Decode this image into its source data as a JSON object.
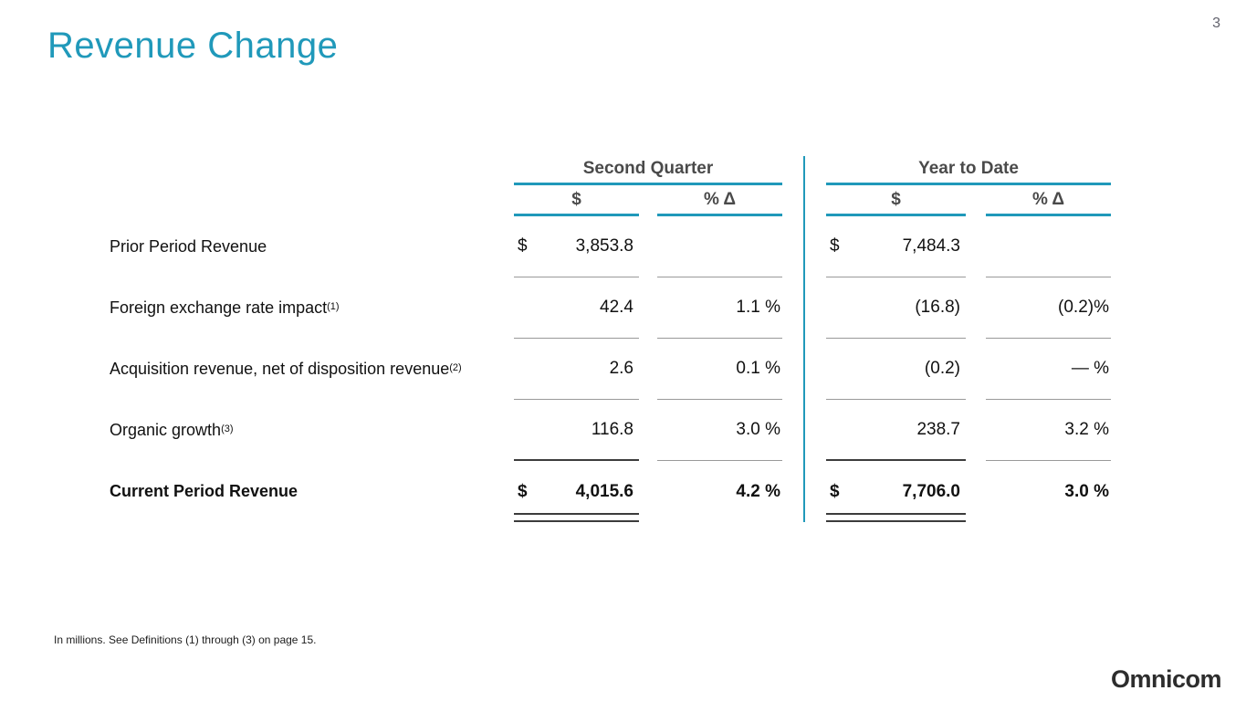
{
  "page": {
    "number": "3",
    "title": "Revenue Change",
    "footnote": "In millions.  See Definitions (1) through (3) on page 15.",
    "logo": "Omnicom"
  },
  "colors": {
    "accent_teal": "#2099ba",
    "header_gray": "#4a4a4a",
    "separator_gray": "#999999",
    "total_line_dark": "#3c3c3c"
  },
  "table": {
    "groups": [
      {
        "label": "Second Quarter"
      },
      {
        "label": "Year to Date"
      }
    ],
    "subheaders": {
      "dollar": "$",
      "pct": "% Δ"
    },
    "rows": [
      {
        "label": "Prior Period Revenue",
        "sup": "",
        "sq_cur": "$",
        "sq_val": "3,853.8",
        "sq_pct": "",
        "ytd_cur": "$",
        "ytd_val": "7,484.3",
        "ytd_pct": ""
      },
      {
        "label": "Foreign exchange rate impact",
        "sup": "(1)",
        "sq_cur": "",
        "sq_val": "42.4",
        "sq_pct": "1.1 %",
        "ytd_cur": "",
        "ytd_val": "(16.8)",
        "ytd_pct": "(0.2)%"
      },
      {
        "label": "Acquisition revenue, net of disposition revenue",
        "sup": "(2)",
        "sq_cur": "",
        "sq_val": "2.6",
        "sq_pct": "0.1 %",
        "ytd_cur": "",
        "ytd_val": "(0.2)",
        "ytd_pct": "— %"
      },
      {
        "label": "Organic growth",
        "sup": "(3)",
        "sq_cur": "",
        "sq_val": "116.8",
        "sq_pct": "3.0 %",
        "ytd_cur": "",
        "ytd_val": "238.7",
        "ytd_pct": "3.2 %"
      },
      {
        "label": "Current Period Revenue",
        "sup": "",
        "sq_cur": "$",
        "sq_val": "4,015.6",
        "sq_pct": "4.2 %",
        "ytd_cur": "$",
        "ytd_val": "7,706.0",
        "ytd_pct": "3.0 %"
      }
    ]
  }
}
